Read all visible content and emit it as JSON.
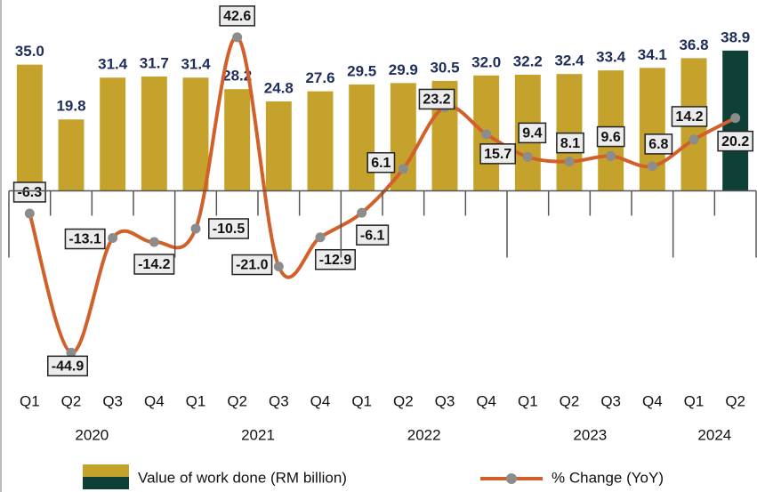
{
  "chart_data": {
    "type": "bar_line",
    "categories": [
      "Q1",
      "Q2",
      "Q3",
      "Q4",
      "Q1",
      "Q2",
      "Q3",
      "Q4",
      "Q1",
      "Q2",
      "Q3",
      "Q4",
      "Q1",
      "Q2",
      "Q3",
      "Q4",
      "Q1",
      "Q2"
    ],
    "years": [
      "2020",
      "2020",
      "2020",
      "2020",
      "2021",
      "2021",
      "2021",
      "2021",
      "2022",
      "2022",
      "2022",
      "2022",
      "2023",
      "2023",
      "2023",
      "2023",
      "2024",
      "2024"
    ],
    "series": [
      {
        "name": "Value of work done (RM billion)",
        "type": "bar",
        "colors": [
          "#c5a22c",
          "#c5a22c",
          "#c5a22c",
          "#c5a22c",
          "#c5a22c",
          "#c5a22c",
          "#c5a22c",
          "#c5a22c",
          "#c5a22c",
          "#c5a22c",
          "#c5a22c",
          "#c5a22c",
          "#c5a22c",
          "#c5a22c",
          "#c5a22c",
          "#c5a22c",
          "#c5a22c",
          "#0f4038"
        ],
        "values": [
          35.0,
          19.8,
          31.4,
          31.7,
          31.4,
          28.2,
          24.8,
          27.6,
          29.5,
          29.9,
          30.5,
          32.0,
          32.2,
          32.4,
          33.4,
          34.1,
          36.8,
          38.9
        ],
        "value_labels": [
          "35.0",
          "19.8",
          "31.4",
          "31.7",
          "31.4",
          "28.2",
          "24.8",
          "27.6",
          "29.5",
          "29.9",
          "30.5",
          "32.0",
          "32.2",
          "32.4",
          "33.4",
          "34.1",
          "36.8",
          "38.9"
        ]
      },
      {
        "name": "% Change (YoY)",
        "type": "line",
        "axis": "y2",
        "color": "#d2602a",
        "marker_color": "#8c8c8c",
        "values": [
          -6.3,
          -44.9,
          -13.1,
          -14.2,
          -10.5,
          42.6,
          -21.0,
          -12.9,
          -6.1,
          6.1,
          23.2,
          15.7,
          9.4,
          8.1,
          9.6,
          6.8,
          14.2,
          20.2
        ],
        "value_labels": [
          "-6.3",
          "-44.9",
          "-13.1",
          "-14.2",
          "-10.5",
          "42.6",
          "-21.0",
          "-12.9",
          "-6.1",
          "6.1",
          "23.2",
          "15.7",
          "9.4",
          "8.1",
          "9.6",
          "6.8",
          "14.2",
          "20.2"
        ]
      }
    ],
    "ylim": [
      -50,
      48
    ],
    "y2lim": [
      -50,
      48
    ]
  }
}
